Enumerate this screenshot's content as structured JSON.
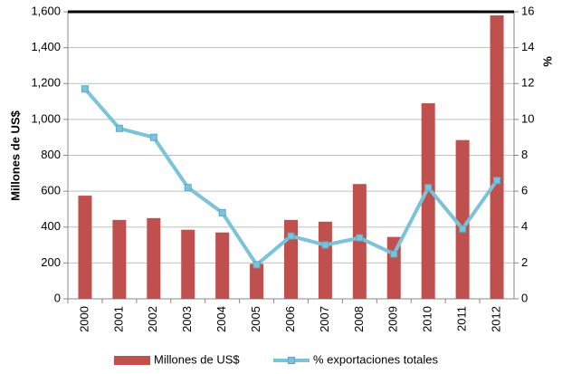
{
  "chart_data": {
    "type": "bar",
    "categories": [
      "2000",
      "2001",
      "2002",
      "2003",
      "2004",
      "2005",
      "2006",
      "2007",
      "2008",
      "2009",
      "2010",
      "2011",
      "2012"
    ],
    "y_label": "Millones de US$",
    "y2_label": "%",
    "ylim": [
      0,
      1600
    ],
    "yticks": [
      0,
      200,
      400,
      600,
      800,
      {
        "value": 1000,
        "label": "1,000"
      },
      {
        "value": 1200,
        "label": "1,200"
      },
      {
        "value": 1400,
        "label": "1,400"
      },
      {
        "value": 1600,
        "label": "1,600"
      }
    ],
    "y2lim": [
      0,
      16
    ],
    "y2ticks": [
      0,
      2,
      4,
      6,
      8,
      10,
      12,
      14,
      16
    ],
    "grid": true,
    "legend": "bottom",
    "series": [
      {
        "name": "Millones de US$",
        "type": "bar",
        "color": "#c0504d",
        "values": [
          575,
          440,
          450,
          385,
          370,
          195,
          440,
          430,
          640,
          345,
          1090,
          885,
          1580
        ]
      },
      {
        "name": "% exportaciones totales",
        "type": "line",
        "axis": "y2",
        "color": "#7ac3da",
        "values": [
          11.7,
          9.5,
          9.0,
          6.2,
          4.8,
          1.9,
          3.5,
          3.0,
          3.4,
          2.5,
          6.2,
          3.9,
          6.6
        ]
      }
    ]
  }
}
